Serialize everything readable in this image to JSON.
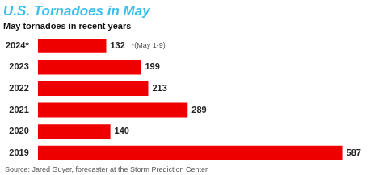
{
  "chart_data": {
    "type": "bar",
    "orientation": "horizontal",
    "title": "U.S. Tornadoes in May",
    "subtitle": "May tornadoes in recent years",
    "source": "Source: Jared Guyer, forecaster at the Storm Prediction Center",
    "annotations": [
      {
        "category": "2024*",
        "text": "*(May 1-9)"
      }
    ],
    "categories": [
      "2024*",
      "2023",
      "2022",
      "2021",
      "2020",
      "2019"
    ],
    "values": [
      132,
      199,
      213,
      289,
      140,
      587
    ],
    "color": "#ee0000",
    "xlim": [
      0,
      650
    ],
    "grid": false,
    "data_labels": true,
    "tick_labels": "y"
  }
}
